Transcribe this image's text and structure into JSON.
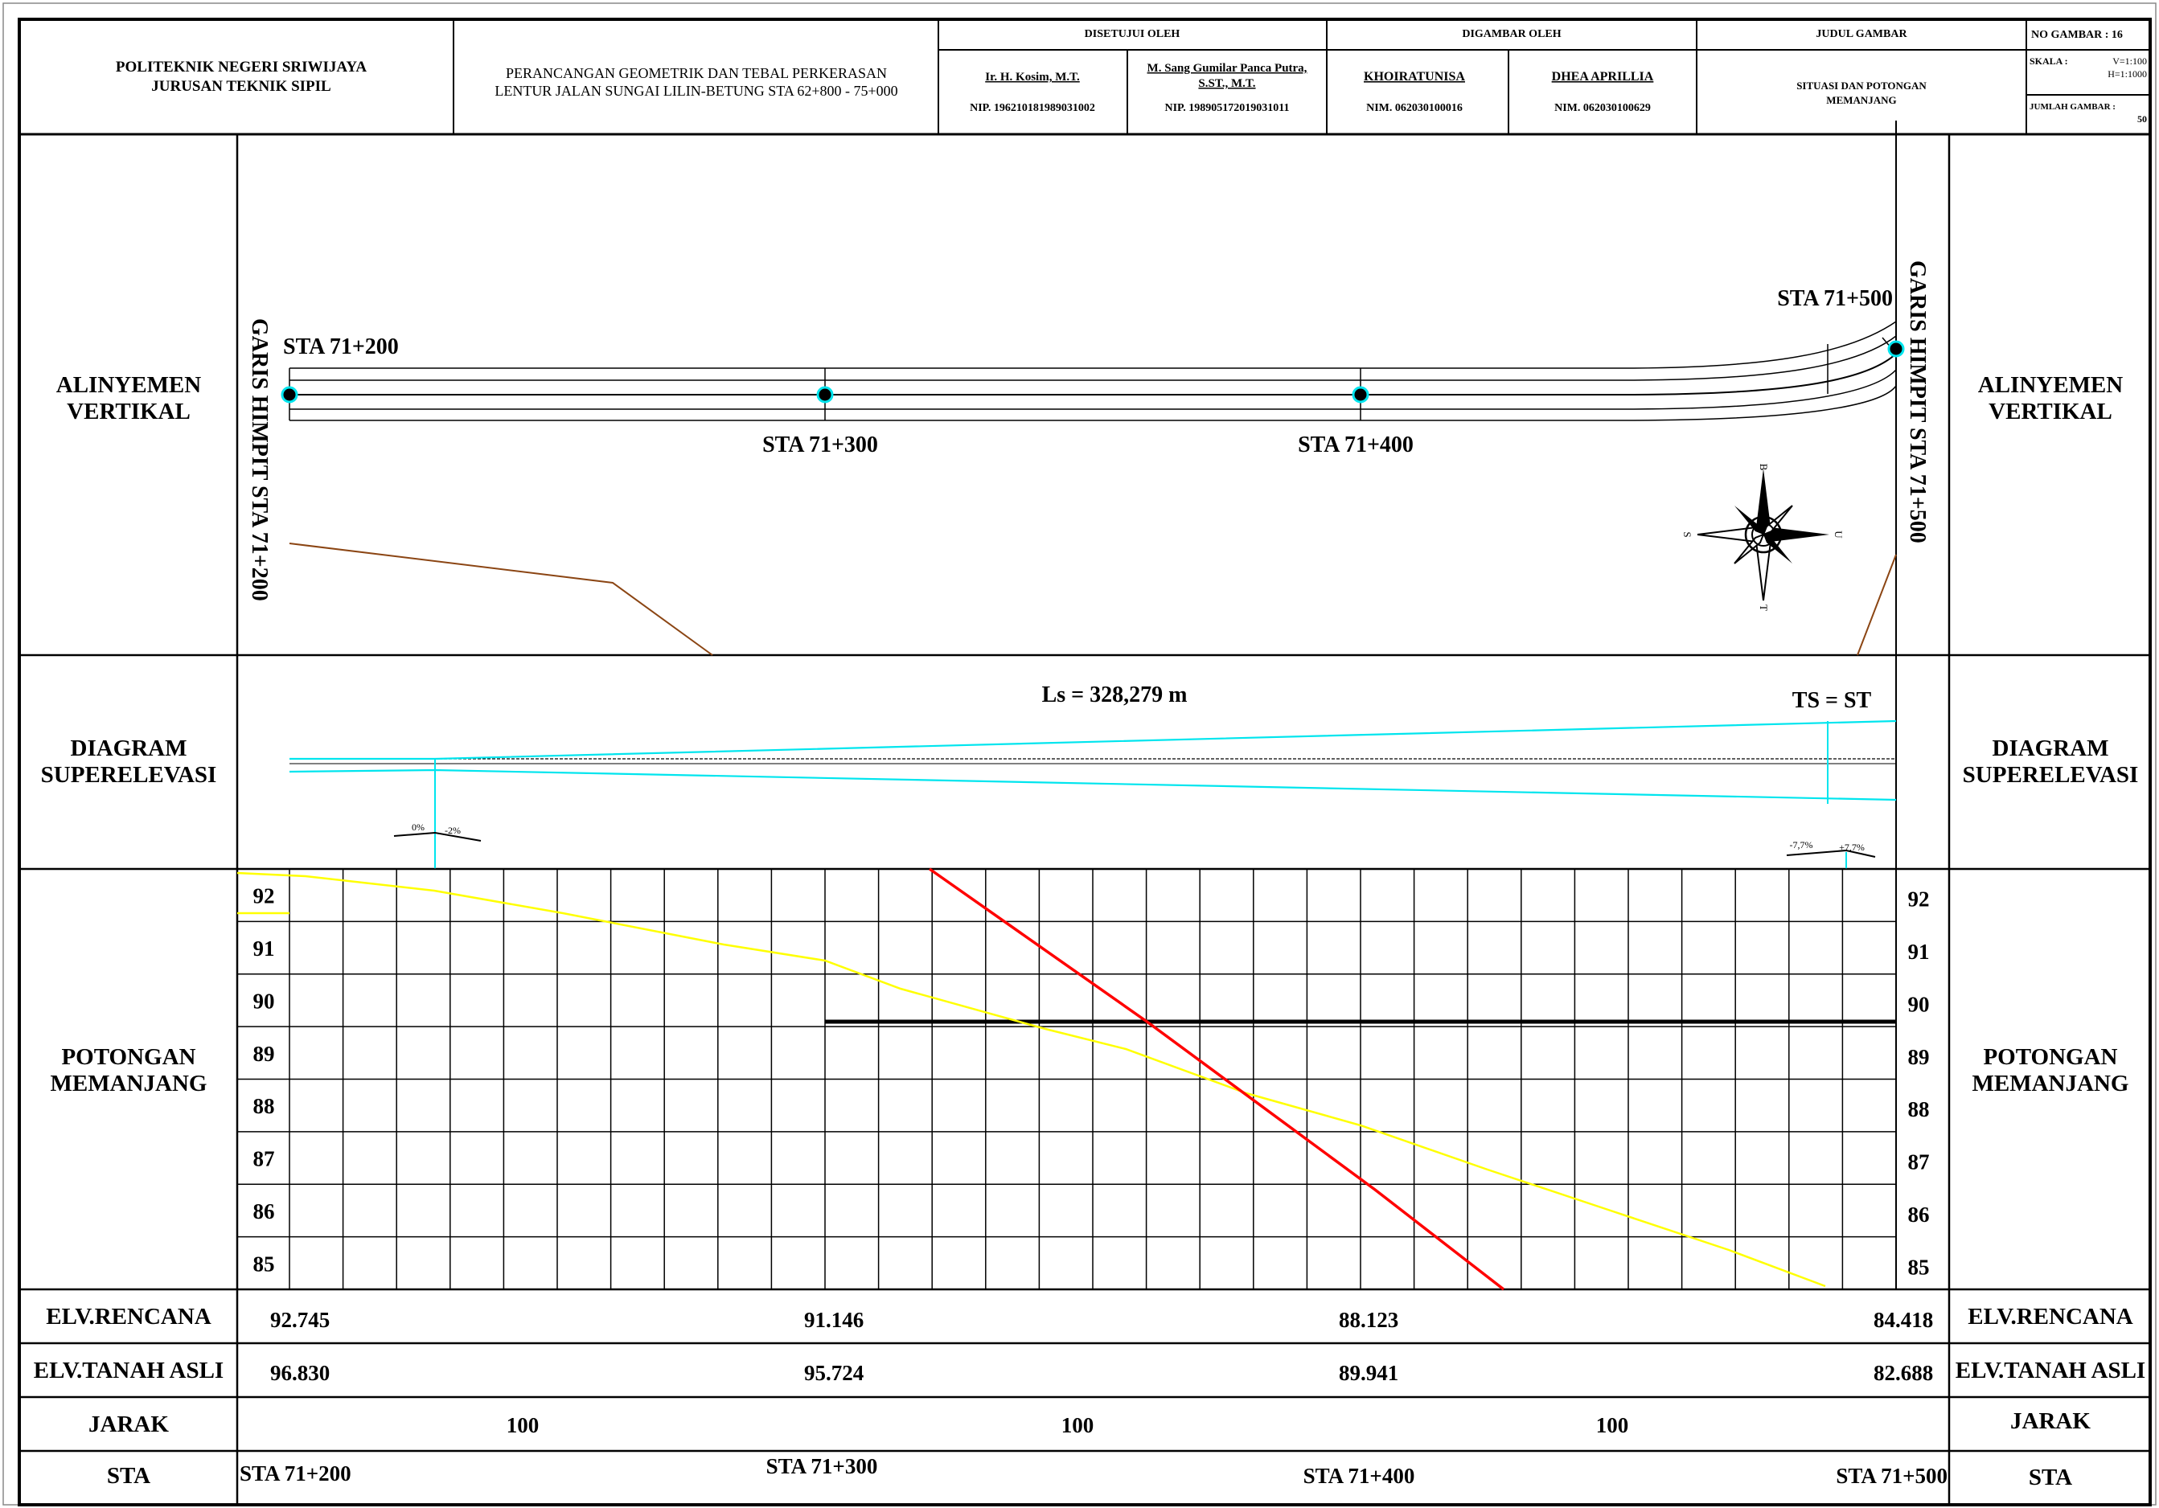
{
  "title_block": {
    "institution_line1": "POLITEKNIK NEGERI SRIWIJAYA",
    "institution_line2": "JURUSAN TEKNIK SIPIL",
    "project_line1": "PERANCANGAN GEOMETRIK DAN TEBAL PERKERASAN",
    "project_line2": "LENTUR JALAN SUNGAI LILIN-BETUNG STA 62+800 - 75+000",
    "approved_header": "DISETUJUI OLEH",
    "approver1_name": "Ir. H. Kosim, M.T.",
    "approver1_nip": "NIP. 196210181989031002",
    "approver2_name_line1": "M. Sang Gumilar Panca Putra,",
    "approver2_name_line2": "S.ST., M.T.",
    "approver2_nip": "NIP. 198905172019031011",
    "drawn_header": "DIGAMBAR OLEH",
    "drafter1_name": "KHOIRATUNISA",
    "drafter1_nim": "NIM. 062030100016",
    "drafter2_name": "DHEA APRILLIA",
    "drafter2_nim": "NIM. 062030100629",
    "drawing_title_header": "JUDUL GAMBAR",
    "drawing_title_line1": "SITUASI DAN POTONGAN",
    "drawing_title_line2": "MEMANJANG",
    "sheet_no": "NO GAMBAR :  16",
    "scale_label": "SKALA :",
    "scale_v": "V=1:100",
    "scale_h": "H=1:1000",
    "total_sheets_label": "JUMLAH GAMBAR :",
    "total_sheets": "50"
  },
  "rows": {
    "alignment_line1": "ALINYEMEN",
    "alignment_line2": "VERTIKAL",
    "superelevation_line1": "DIAGRAM",
    "superelevation_line2": "SUPERELEVASI",
    "profile_line1": "POTONGAN",
    "profile_line2": "MEMANJANG",
    "elv_design": "ELV.RENCANA",
    "elv_ground": "ELV.TANAH ASLI",
    "distance": "JARAK",
    "station": "STA"
  },
  "plan": {
    "left_tie_line": "GARIS HIMPIT STA 71+200",
    "right_tie_line": "GARIS HIMPIT STA 71+500",
    "sta_start": "STA 71+200",
    "sta_300": "STA 71+300",
    "sta_400": "STA 71+400",
    "sta_end": "STA 71+500",
    "compass_north": "B",
    "compass_south": "T",
    "compass_west": "S",
    "compass_east": "U"
  },
  "superelevation": {
    "ls_label": "Ls = 328,279 m",
    "ts_label": "TS = ST",
    "start_left": "0%",
    "start_right": "-2%",
    "end_left": "-7,7%",
    "end_right": "+7,7%"
  },
  "profile": {
    "elevation_ticks": [
      "92",
      "91",
      "90",
      "89",
      "88",
      "87",
      "86",
      "85"
    ],
    "line_colors": {
      "design_grade": "#ff0000",
      "ground": "#ffff00",
      "grid": "#000000",
      "crossfall": "#00e5ee",
      "plan_boundary": "#8b4513"
    }
  },
  "table": {
    "elv_design": [
      "92.745",
      "91.146",
      "88.123",
      "84.418"
    ],
    "elv_ground": [
      "96.830",
      "95.724",
      "89.941",
      "82.688"
    ],
    "distances": [
      "100",
      "100",
      "100"
    ],
    "stations": [
      "STA 71+200",
      "STA 71+300",
      "STA 71+400",
      "STA 71+500"
    ]
  }
}
